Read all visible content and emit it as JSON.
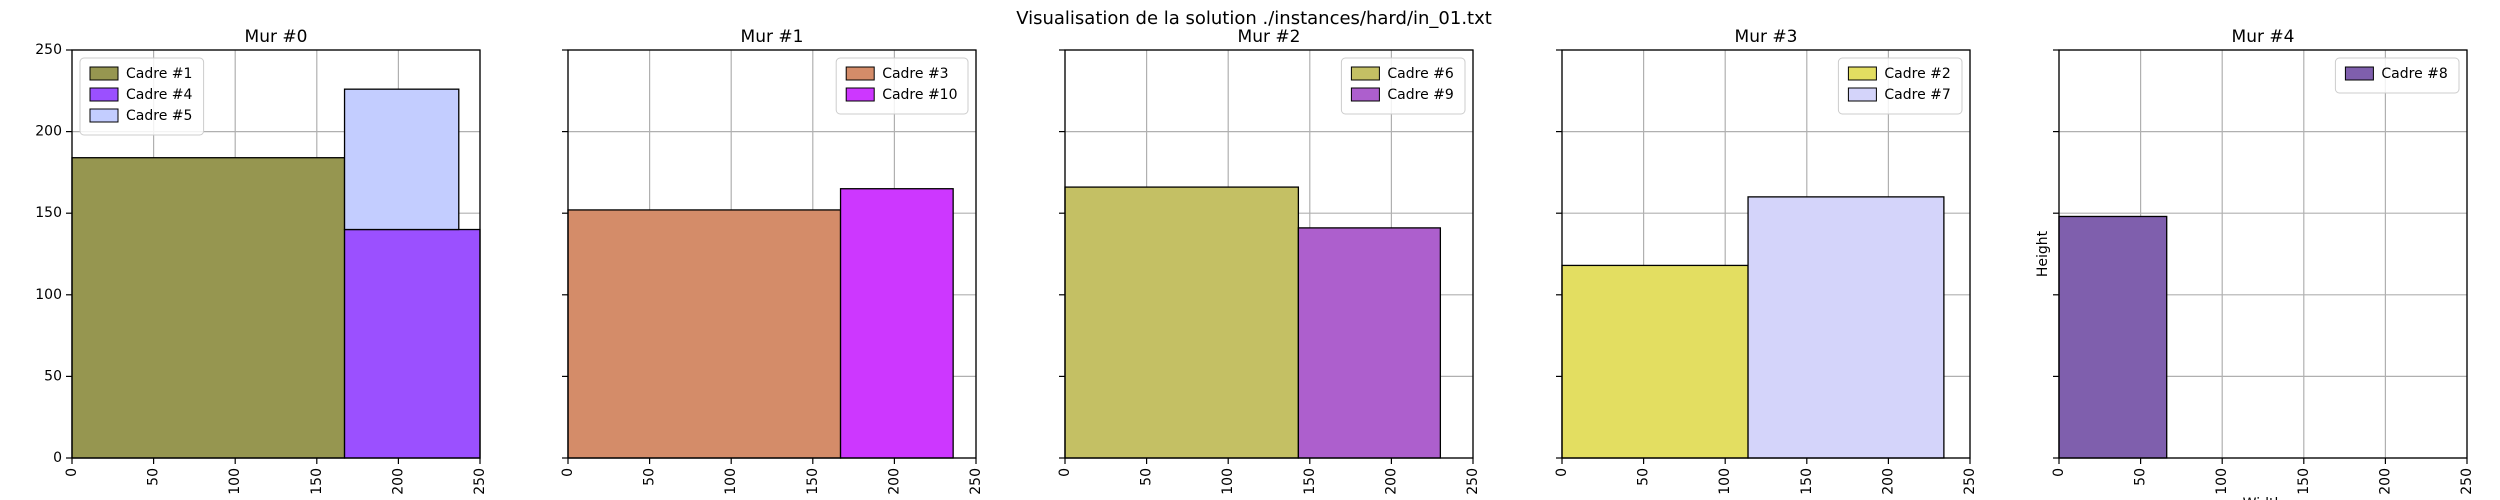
{
  "figure_title": "Visualisation de la solution ./instances/hard/in_01.txt",
  "chart_data": [
    {
      "type": "bar",
      "title": "Mur #0",
      "xlabel": "",
      "ylabel": "",
      "xlim": [
        0,
        250
      ],
      "ylim": [
        0,
        250
      ],
      "xticks": [
        0,
        50,
        100,
        150,
        200,
        250
      ],
      "yticks": [
        0,
        50,
        100,
        150,
        200,
        250
      ],
      "grid": true,
      "legend_position": "top-left",
      "rects": [
        {
          "name": "Cadre #1",
          "x": 0,
          "y": 0,
          "w": 167,
          "h": 184,
          "color": "#969650"
        },
        {
          "name": "Cadre #4",
          "x": 167,
          "y": 0,
          "w": 83,
          "h": 140,
          "color": "#9b50ff"
        },
        {
          "name": "Cadre #5",
          "x": 167,
          "y": 140,
          "w": 70,
          "h": 86,
          "color": "#c3cdff"
        }
      ]
    },
    {
      "type": "bar",
      "title": "Mur #1",
      "xlabel": "",
      "ylabel": "",
      "xlim": [
        0,
        250
      ],
      "ylim": [
        0,
        250
      ],
      "xticks": [
        0,
        50,
        100,
        150,
        200,
        250
      ],
      "yticks": [
        0,
        50,
        100,
        150,
        200,
        250
      ],
      "grid": true,
      "legend_position": "top-right",
      "rects": [
        {
          "name": "Cadre #3",
          "x": 0,
          "y": 0,
          "w": 167,
          "h": 152,
          "color": "#d48c69"
        },
        {
          "name": "Cadre #10",
          "x": 167,
          "y": 0,
          "w": 69,
          "h": 165,
          "color": "#cd37ff"
        }
      ]
    },
    {
      "type": "bar",
      "title": "Mur #2",
      "xlabel": "",
      "ylabel": "",
      "xlim": [
        0,
        250
      ],
      "ylim": [
        0,
        250
      ],
      "xticks": [
        0,
        50,
        100,
        150,
        200,
        250
      ],
      "yticks": [
        0,
        50,
        100,
        150,
        200,
        250
      ],
      "grid": true,
      "legend_position": "top-right",
      "rects": [
        {
          "name": "Cadre #6",
          "x": 0,
          "y": 0,
          "w": 143,
          "h": 166,
          "color": "#c4c064"
        },
        {
          "name": "Cadre #9",
          "x": 143,
          "y": 0,
          "w": 87,
          "h": 141,
          "color": "#ad5fcd"
        }
      ]
    },
    {
      "type": "bar",
      "title": "Mur #3",
      "xlabel": "",
      "ylabel": "",
      "xlim": [
        0,
        250
      ],
      "ylim": [
        0,
        250
      ],
      "xticks": [
        0,
        50,
        100,
        150,
        200,
        250
      ],
      "yticks": [
        0,
        50,
        100,
        150,
        200,
        250
      ],
      "grid": true,
      "legend_position": "top-right",
      "rects": [
        {
          "name": "Cadre #2",
          "x": 0,
          "y": 0,
          "w": 114,
          "h": 118,
          "color": "#e3de61"
        },
        {
          "name": "Cadre #7",
          "x": 114,
          "y": 0,
          "w": 120,
          "h": 160,
          "color": "#d4d4fa"
        }
      ]
    },
    {
      "type": "bar",
      "title": "Mur #4",
      "xlabel": "Width",
      "ylabel": "Height",
      "xlim": [
        0,
        250
      ],
      "ylim": [
        0,
        250
      ],
      "xticks": [
        0,
        50,
        100,
        150,
        200,
        250
      ],
      "yticks": [
        0,
        50,
        100,
        150,
        200,
        250
      ],
      "grid": true,
      "legend_position": "top-right",
      "rects": [
        {
          "name": "Cadre #8",
          "x": 0,
          "y": 0,
          "w": 66,
          "h": 148,
          "color": "#7f5fad"
        }
      ]
    }
  ]
}
